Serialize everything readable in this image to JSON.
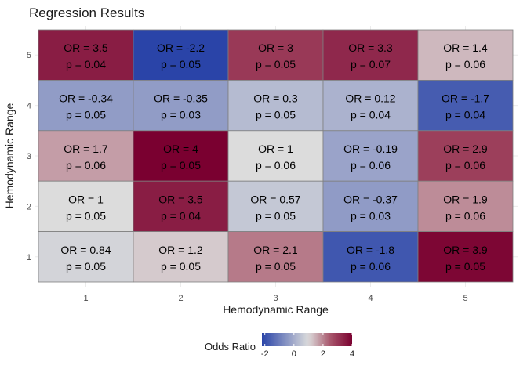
{
  "chart_data": {
    "type": "heatmap",
    "title": "Regression Results",
    "xlabel": "Hemodynamic Range",
    "ylabel": "Hemodynamic Range",
    "x_categories": [
      "1",
      "2",
      "3",
      "4",
      "5"
    ],
    "y_categories": [
      "1",
      "2",
      "3",
      "4",
      "5"
    ],
    "cells": [
      {
        "x": "1",
        "y": "5",
        "or": 3.5,
        "or_label": "OR = 3.5",
        "p_label": "p = 0.04"
      },
      {
        "x": "2",
        "y": "5",
        "or": -2.2,
        "or_label": "OR = -2.2",
        "p_label": "p = 0.05"
      },
      {
        "x": "3",
        "y": "5",
        "or": 3,
        "or_label": "OR = 3",
        "p_label": "p = 0.05"
      },
      {
        "x": "4",
        "y": "5",
        "or": 3.3,
        "or_label": "OR = 3.3",
        "p_label": "p = 0.07"
      },
      {
        "x": "5",
        "y": "5",
        "or": 1.4,
        "or_label": "OR = 1.4",
        "p_label": "p = 0.06"
      },
      {
        "x": "1",
        "y": "4",
        "or": -0.34,
        "or_label": "OR = -0.34",
        "p_label": "p = 0.05"
      },
      {
        "x": "2",
        "y": "4",
        "or": -0.35,
        "or_label": "OR = -0.35",
        "p_label": "p = 0.03"
      },
      {
        "x": "3",
        "y": "4",
        "or": 0.3,
        "or_label": "OR = 0.3",
        "p_label": "p = 0.05"
      },
      {
        "x": "4",
        "y": "4",
        "or": 0.12,
        "or_label": "OR = 0.12",
        "p_label": "p = 0.04"
      },
      {
        "x": "5",
        "y": "4",
        "or": -1.7,
        "or_label": "OR = -1.7",
        "p_label": "p = 0.04"
      },
      {
        "x": "1",
        "y": "3",
        "or": 1.7,
        "or_label": "OR = 1.7",
        "p_label": "p = 0.06"
      },
      {
        "x": "2",
        "y": "3",
        "or": 4,
        "or_label": "OR = 4",
        "p_label": "p = 0.05"
      },
      {
        "x": "3",
        "y": "3",
        "or": 1,
        "or_label": "OR = 1",
        "p_label": "p = 0.06"
      },
      {
        "x": "4",
        "y": "3",
        "or": -0.19,
        "or_label": "OR = -0.19",
        "p_label": "p = 0.06"
      },
      {
        "x": "5",
        "y": "3",
        "or": 2.9,
        "or_label": "OR = 2.9",
        "p_label": "p = 0.06"
      },
      {
        "x": "1",
        "y": "2",
        "or": 1,
        "or_label": "OR = 1",
        "p_label": "p = 0.05"
      },
      {
        "x": "2",
        "y": "2",
        "or": 3.5,
        "or_label": "OR = 3.5",
        "p_label": "p = 0.04"
      },
      {
        "x": "3",
        "y": "2",
        "or": 0.57,
        "or_label": "OR = 0.57",
        "p_label": "p = 0.05"
      },
      {
        "x": "4",
        "y": "2",
        "or": -0.37,
        "or_label": "OR = -0.37",
        "p_label": "p = 0.03"
      },
      {
        "x": "5",
        "y": "2",
        "or": 1.9,
        "or_label": "OR = 1.9",
        "p_label": "p = 0.06"
      },
      {
        "x": "1",
        "y": "1",
        "or": 0.84,
        "or_label": "OR = 0.84",
        "p_label": "p = 0.05"
      },
      {
        "x": "2",
        "y": "1",
        "or": 1.2,
        "or_label": "OR = 1.2",
        "p_label": "p = 0.05"
      },
      {
        "x": "3",
        "y": "1",
        "or": 2.1,
        "or_label": "OR = 2.1",
        "p_label": "p = 0.05"
      },
      {
        "x": "4",
        "y": "1",
        "or": -1.8,
        "or_label": "OR = -1.8",
        "p_label": "p = 0.06"
      },
      {
        "x": "5",
        "y": "1",
        "or": 3.9,
        "or_label": "OR = 3.9",
        "p_label": "p = 0.05"
      }
    ],
    "legend": {
      "title": "Odds Ratio",
      "position": "bottom",
      "ticks": [
        -2,
        0,
        2,
        4
      ],
      "tick_labels": [
        "-2",
        "0",
        "2",
        "4"
      ],
      "range": [
        -2.2,
        4
      ]
    },
    "color_scale": {
      "low": "#053061",
      "low_mid": "#2a44a8",
      "mid": "#dcdcdc",
      "high_mid": "#a8566b",
      "high": "#7a0030",
      "midpoint": 1
    },
    "grid": true
  }
}
